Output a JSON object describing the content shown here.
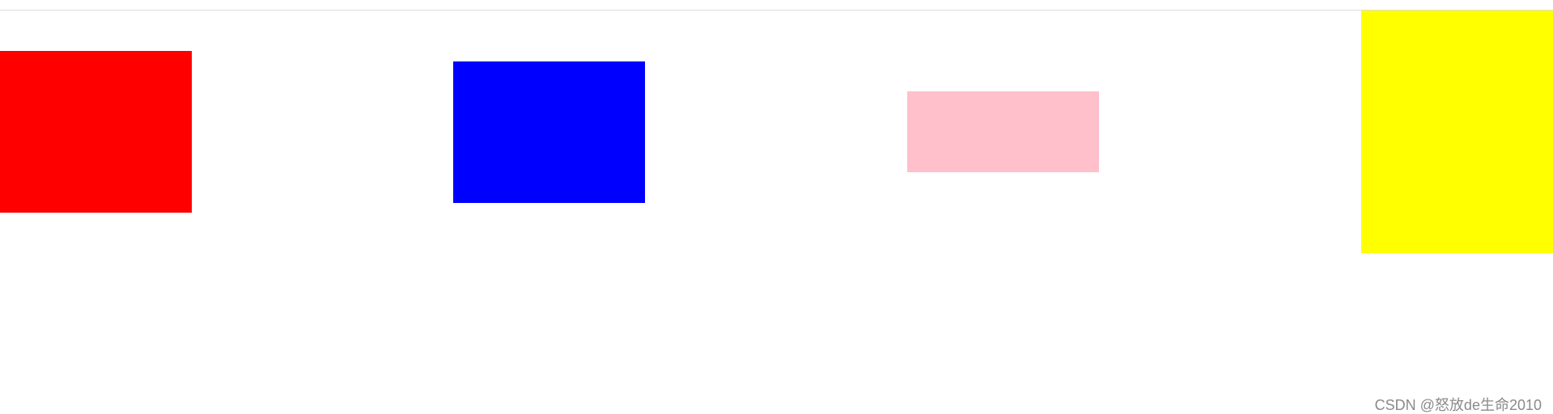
{
  "blocks": [
    {
      "name": "red-box",
      "color": "#ff0000"
    },
    {
      "name": "blue-box",
      "color": "#0000ff"
    },
    {
      "name": "pink-box",
      "color": "#ffc0cb"
    },
    {
      "name": "yellow-box",
      "color": "#ffff00"
    }
  ],
  "watermark": {
    "text": "CSDN @怒放de生命2010"
  }
}
